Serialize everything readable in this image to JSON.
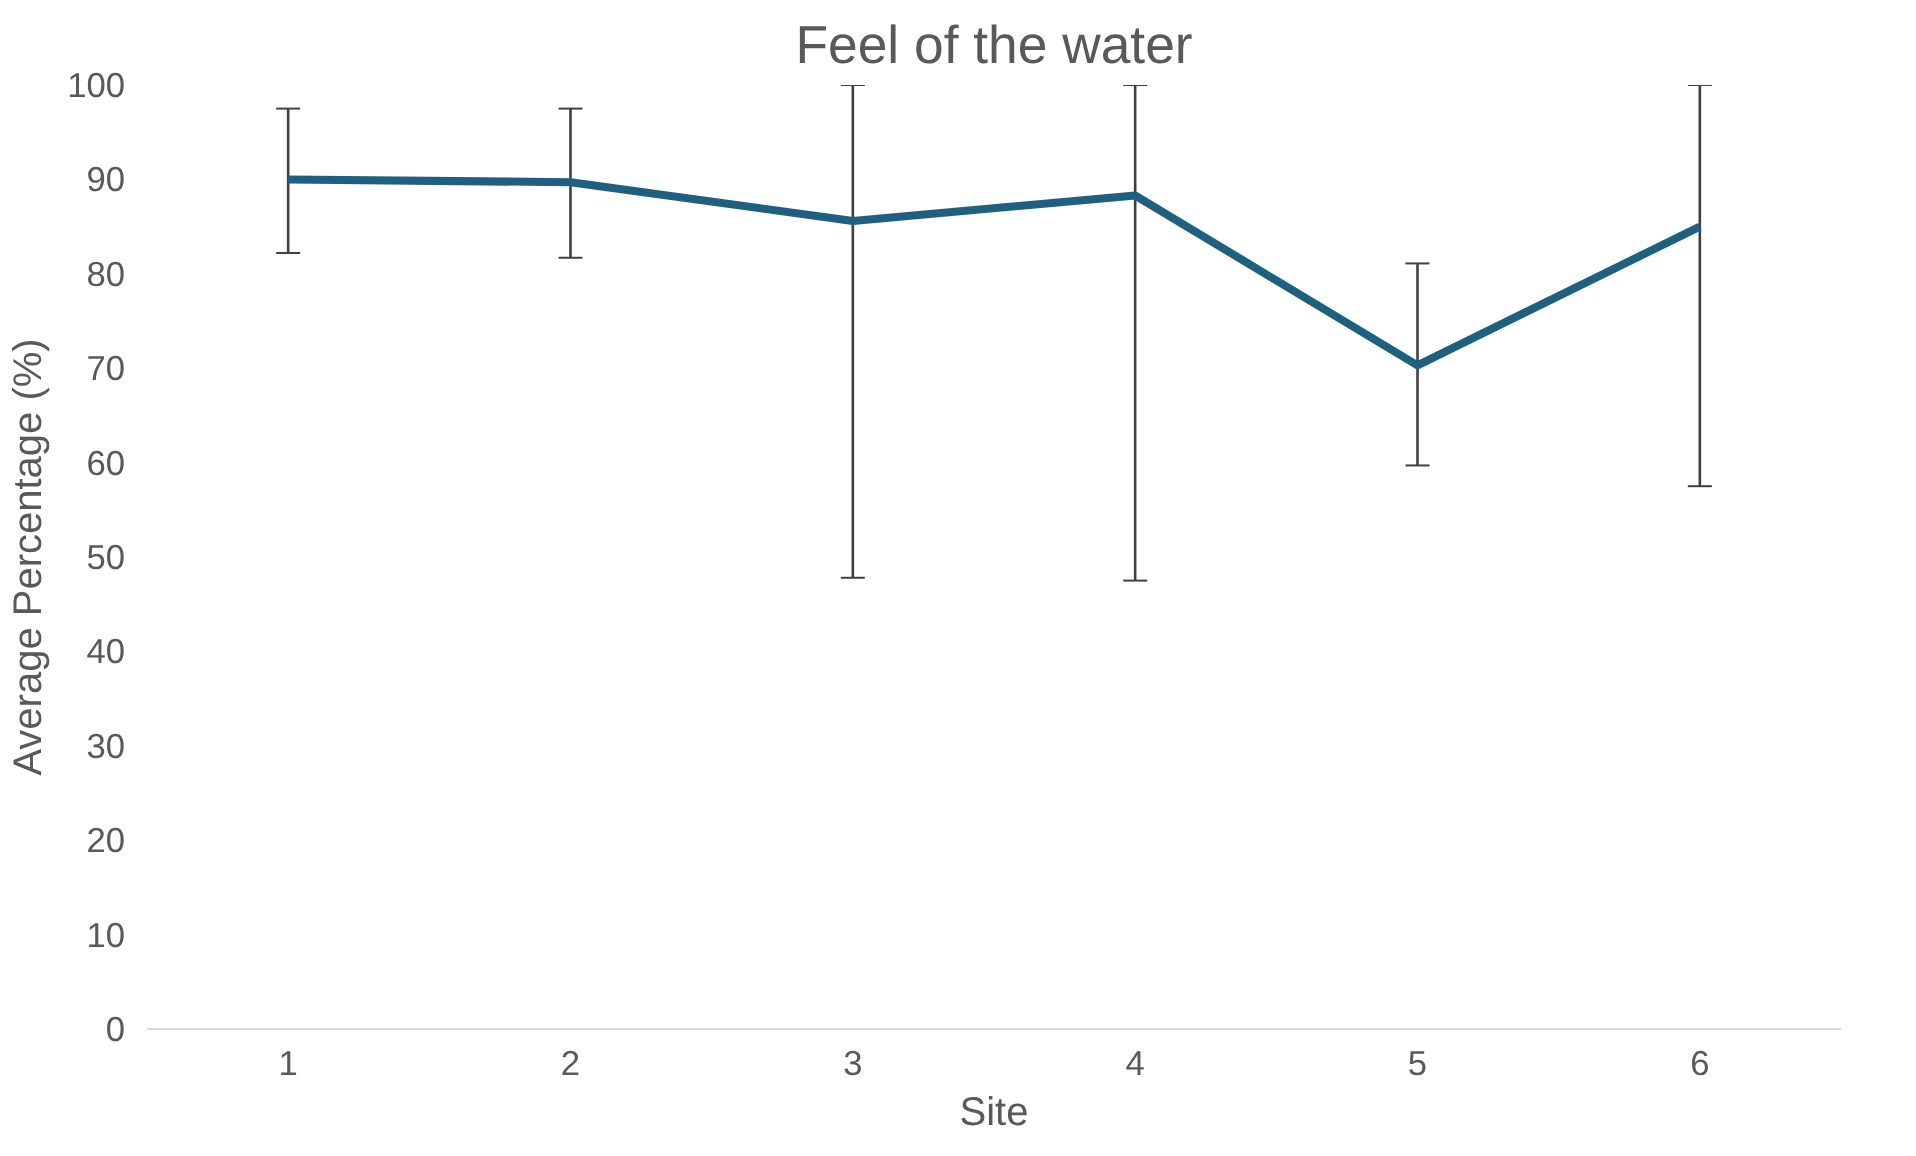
{
  "chart_data": {
    "type": "line",
    "title": "Feel of the water",
    "xlabel": "Site",
    "ylabel": "Average Percentage (%)",
    "categories": [
      "1",
      "2",
      "3",
      "4",
      "5",
      "6"
    ],
    "series": [
      {
        "color": "#1f5f7f",
        "values": [
          90,
          89.7,
          85.6,
          88.3,
          70.3,
          85
        ],
        "errors": [
          [
            82.2,
            97.5
          ],
          [
            81.7,
            97.5
          ],
          [
            47.8,
            100
          ],
          [
            47.5,
            100
          ],
          [
            59.7,
            81.1
          ],
          [
            57.5,
            100
          ]
        ]
      }
    ],
    "ylim": [
      0,
      100
    ],
    "yticks": [
      0,
      10,
      20,
      30,
      40,
      50,
      60,
      70,
      80,
      90,
      100
    ],
    "grid": false,
    "marker": "none",
    "line_style": "solid"
  }
}
